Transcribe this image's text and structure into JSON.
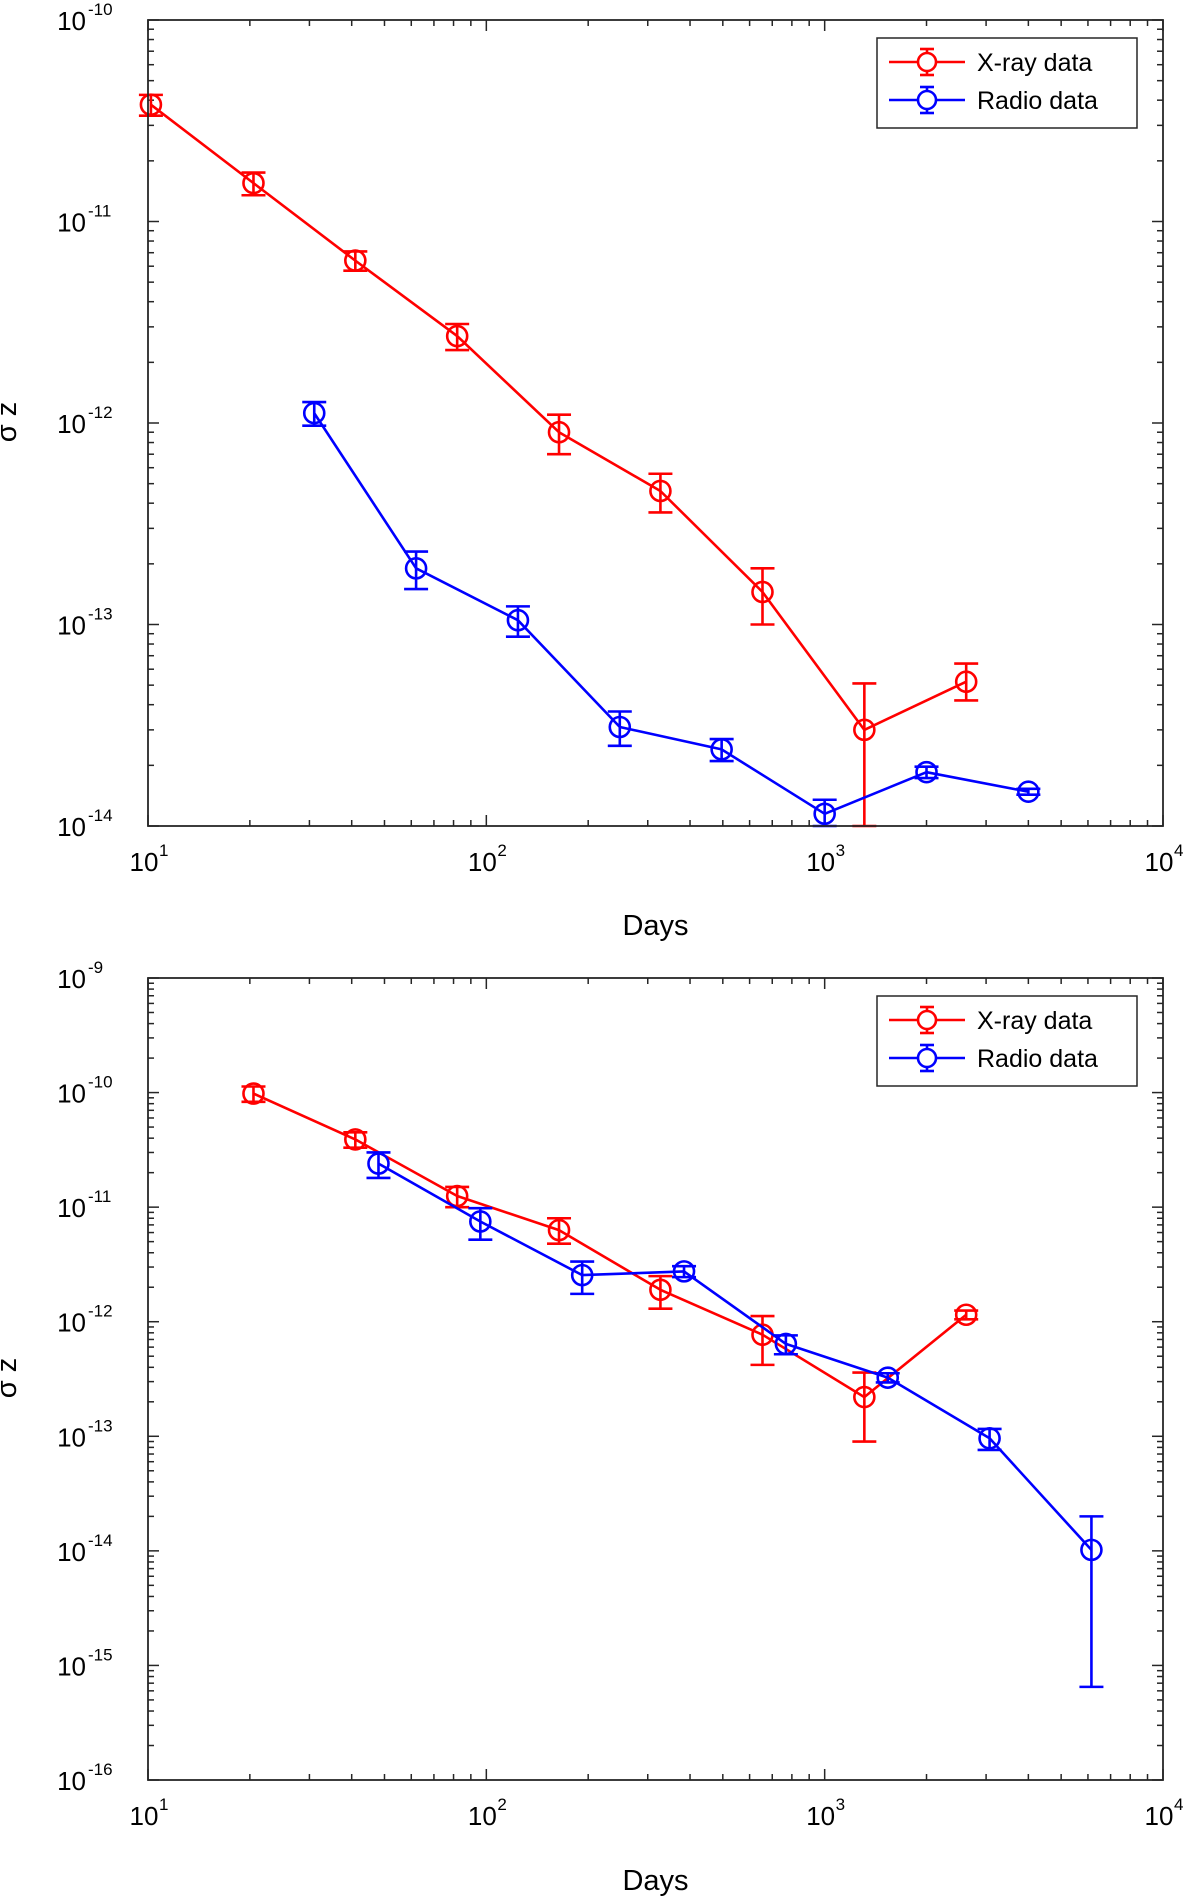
{
  "chart_data": [
    {
      "type": "line",
      "title": "",
      "xlabel": "Days",
      "ylabel": "σ z",
      "xscale": "log",
      "yscale": "log",
      "xlim": [
        10,
        10000
      ],
      "ylim": [
        1e-14,
        1e-10
      ],
      "x_ticks": [
        {
          "base": "10",
          "exp": "1",
          "value": 10
        },
        {
          "base": "10",
          "exp": "2",
          "value": 100
        },
        {
          "base": "10",
          "exp": "3",
          "value": 1000
        },
        {
          "base": "10",
          "exp": "4",
          "value": 10000
        }
      ],
      "y_ticks": [
        {
          "base": "10",
          "exp": "-14",
          "value": 1e-14
        },
        {
          "base": "10",
          "exp": "-13",
          "value": 1e-13
        },
        {
          "base": "10",
          "exp": "-12",
          "value": 1e-12
        },
        {
          "base": "10",
          "exp": "-11",
          "value": 1e-11
        },
        {
          "base": "10",
          "exp": "-10",
          "value": 1e-10
        }
      ],
      "legend": {
        "location": "top-right"
      },
      "series": [
        {
          "name": "X-ray data",
          "color": "#ff0000",
          "x": [
            10.2,
            20.5,
            41,
            82,
            164,
            327,
            655,
            1310,
            2620
          ],
          "y": [
            3.8e-11,
            1.55e-11,
            6.4e-12,
            2.7e-12,
            9e-13,
            4.6e-13,
            1.45e-13,
            3e-14,
            5.2e-14
          ],
          "err_low": [
            4.5e-12,
            2e-12,
            7e-13,
            4e-13,
            2e-13,
            1e-13,
            4.5e-14,
            2e-14,
            1e-14
          ],
          "err_high": [
            4.5e-12,
            2e-12,
            7e-13,
            4e-13,
            2e-13,
            1e-13,
            4.5e-14,
            2.1e-14,
            1.2e-14
          ]
        },
        {
          "name": "Radio data",
          "color": "#0000ff",
          "x": [
            31,
            62,
            124,
            248,
            496,
            1000,
            2000,
            4000
          ],
          "y": [
            1.12e-12,
            1.9e-13,
            1.05e-13,
            3.1e-14,
            2.4e-14,
            1.15e-14,
            1.85e-14,
            1.48e-14
          ],
          "err_low": [
            1.5e-13,
            4e-14,
            1.8e-14,
            6e-15,
            3e-15,
            2e-15,
            1.2e-15,
            5e-16
          ],
          "err_high": [
            1.5e-13,
            4e-14,
            1.8e-14,
            6e-15,
            3e-15,
            2e-15,
            1.2e-15,
            5e-16
          ]
        }
      ]
    },
    {
      "type": "line",
      "title": "",
      "xlabel": "Days",
      "ylabel": "σ z",
      "xscale": "log",
      "yscale": "log",
      "xlim": [
        10,
        10000
      ],
      "ylim": [
        1e-16,
        1e-09
      ],
      "x_ticks": [
        {
          "base": "10",
          "exp": "1",
          "value": 10
        },
        {
          "base": "10",
          "exp": "2",
          "value": 100
        },
        {
          "base": "10",
          "exp": "3",
          "value": 1000
        },
        {
          "base": "10",
          "exp": "4",
          "value": 10000
        }
      ],
      "y_ticks": [
        {
          "base": "10",
          "exp": "-16",
          "value": 1e-16
        },
        {
          "base": "10",
          "exp": "-15",
          "value": 1e-15
        },
        {
          "base": "10",
          "exp": "-14",
          "value": 1e-14
        },
        {
          "base": "10",
          "exp": "-13",
          "value": 1e-13
        },
        {
          "base": "10",
          "exp": "-12",
          "value": 1e-12
        },
        {
          "base": "10",
          "exp": "-11",
          "value": 1e-11
        },
        {
          "base": "10",
          "exp": "-10",
          "value": 1e-10
        },
        {
          "base": "10",
          "exp": "-9",
          "value": 1e-09
        }
      ],
      "legend": {
        "location": "top-right"
      },
      "series": [
        {
          "name": "X-ray data",
          "color": "#ff0000",
          "x": [
            20.5,
            41,
            82,
            164,
            327,
            655,
            1310,
            2620
          ],
          "y": [
            9.8e-11,
            3.9e-11,
            1.25e-11,
            6.3e-12,
            1.9e-12,
            7.7e-13,
            2.2e-13,
            1.15e-12
          ],
          "err_low": [
            1.5e-11,
            6e-12,
            2.5e-12,
            1.5e-12,
            6e-13,
            3.5e-13,
            1.3e-13,
            1e-13
          ],
          "err_high": [
            1.5e-11,
            6e-12,
            2.5e-12,
            1.7e-12,
            6e-13,
            3.5e-13,
            1.4e-13,
            1e-13
          ]
        },
        {
          "name": "Radio data",
          "color": "#0000ff",
          "x": [
            48,
            96,
            192,
            384,
            768,
            1536,
            3072,
            6144
          ],
          "y": [
            2.4e-11,
            7.5e-12,
            2.55e-12,
            2.75e-12,
            6.4e-13,
            3.25e-13,
            9.6e-14,
            1.02e-14
          ],
          "err_low": [
            6e-12,
            2.3e-12,
            8e-13,
            3e-13,
            1.2e-13,
            3e-14,
            2e-14,
            9.55e-15
          ],
          "err_high": [
            6e-12,
            2.3e-12,
            8e-13,
            3e-13,
            1.2e-13,
            3e-14,
            2e-14,
            9.8e-15
          ]
        }
      ]
    }
  ]
}
